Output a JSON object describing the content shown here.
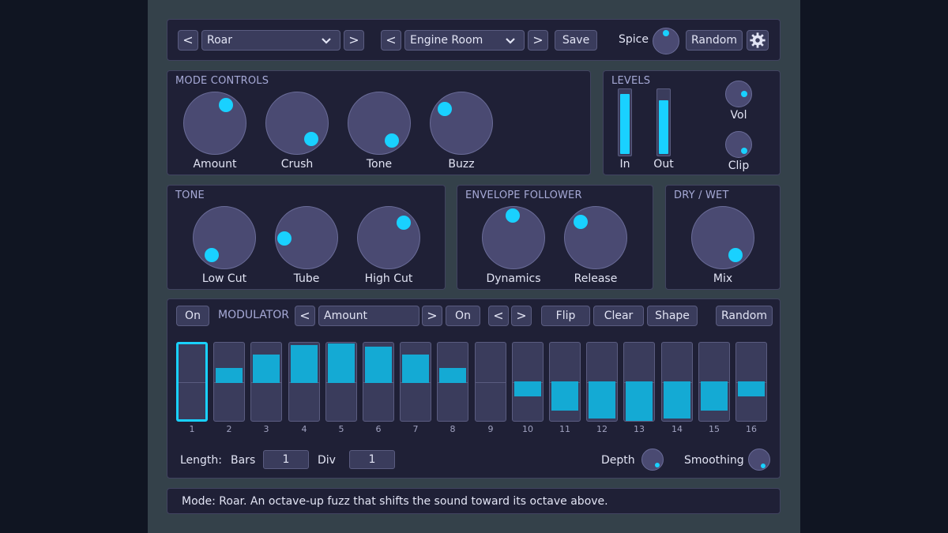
{
  "colors": {
    "accent": "#19d1ff",
    "panel": "#1f2036",
    "frame": "#34414a"
  },
  "topbar": {
    "preset1": {
      "prev": "<",
      "value": "Roar",
      "next": ">"
    },
    "preset2": {
      "prev": "<",
      "value": "Engine Room",
      "next": ">"
    },
    "save_label": "Save",
    "spice_label": "Spice",
    "random_label": "Random",
    "settings_icon": "gear-icon"
  },
  "mode_controls": {
    "title": "MODE CONTROLS",
    "knobs": [
      {
        "label": "Amount"
      },
      {
        "label": "Crush"
      },
      {
        "label": "Tone"
      },
      {
        "label": "Buzz"
      }
    ]
  },
  "levels": {
    "title": "LEVELS",
    "in_label": "In",
    "out_label": "Out",
    "in_level": 0.95,
    "out_level": 0.85,
    "vol_label": "Vol",
    "clip_label": "Clip"
  },
  "tone": {
    "title": "TONE",
    "knobs": [
      {
        "label": "Low Cut"
      },
      {
        "label": "Tube"
      },
      {
        "label": "High Cut"
      }
    ]
  },
  "envelope": {
    "title": "ENVELOPE FOLLOWER",
    "knobs": [
      {
        "label": "Dynamics"
      },
      {
        "label": "Release"
      }
    ]
  },
  "drywet": {
    "title": "DRY / WET",
    "mix_label": "Mix"
  },
  "modulator": {
    "on_label": "On",
    "title": "MODULATOR",
    "prev": "<",
    "target": "Amount",
    "next": ">",
    "on2_label": "On",
    "nav_prev": "<",
    "nav_next": ">",
    "flip_label": "Flip",
    "clear_label": "Clear",
    "shape_label": "Shape",
    "random_label": "Random",
    "steps": [
      {
        "n": "1",
        "value": 0
      },
      {
        "n": "2",
        "value": 0.2
      },
      {
        "n": "3",
        "value": 0.37
      },
      {
        "n": "4",
        "value": 0.5
      },
      {
        "n": "5",
        "value": 0.52
      },
      {
        "n": "6",
        "value": 0.47
      },
      {
        "n": "7",
        "value": 0.37
      },
      {
        "n": "8",
        "value": 0.2
      },
      {
        "n": "9",
        "value": 0
      },
      {
        "n": "10",
        "value": -0.2
      },
      {
        "n": "11",
        "value": -0.38
      },
      {
        "n": "12",
        "value": -0.48
      },
      {
        "n": "13",
        "value": -0.52
      },
      {
        "n": "14",
        "value": -0.48
      },
      {
        "n": "15",
        "value": -0.38
      },
      {
        "n": "16",
        "value": -0.2
      }
    ],
    "length_label": "Length:",
    "bars_label": "Bars",
    "bars_value": "1",
    "div_label": "Div",
    "div_value": "1",
    "depth_label": "Depth",
    "smoothing_label": "Smoothing"
  },
  "status": {
    "text": "Mode: Roar. An octave-up fuzz that shifts the sound toward its octave above."
  }
}
